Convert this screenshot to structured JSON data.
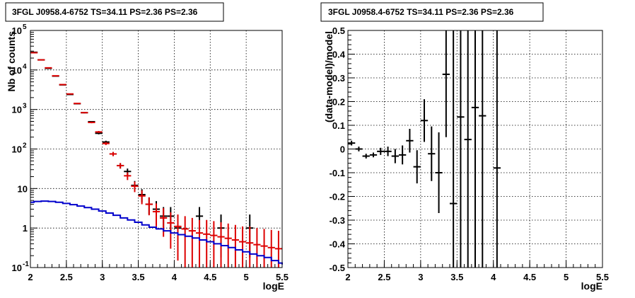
{
  "chart_data": [
    {
      "type": "scatter",
      "title": "3FGL J0958.4-6752 TS=34.11 PS=2.36 PS=2.36",
      "xlabel": "logE",
      "ylabel": "Nb of counts",
      "xlim": [
        2,
        5.5
      ],
      "ylim": [
        0.1,
        100000
      ],
      "yscale": "log",
      "grid": true,
      "x_ticks": [
        "2",
        "2.5",
        "3",
        "3.5",
        "4",
        "4.5",
        "5",
        "5.5"
      ],
      "y_ticks": [
        {
          "value": 0.1,
          "label": "10",
          "exp": "-1"
        },
        {
          "value": 1,
          "label": "1",
          "exp": ""
        },
        {
          "value": 10,
          "label": "10",
          "exp": ""
        },
        {
          "value": 100,
          "label": "10",
          "exp": "2"
        },
        {
          "value": 1000,
          "label": "10",
          "exp": "3"
        },
        {
          "value": 10000,
          "label": "10",
          "exp": "4"
        },
        {
          "value": 100000,
          "label": "10",
          "exp": "5"
        }
      ],
      "series": [
        {
          "kind": "data",
          "color": "#000000",
          "x": [
            2.05,
            2.15,
            2.25,
            2.35,
            2.45,
            2.55,
            2.65,
            2.75,
            2.85,
            2.95,
            3.05,
            3.15,
            3.25,
            3.35,
            3.45,
            3.55,
            3.65,
            3.75,
            3.85,
            3.95,
            4.05,
            4.35,
            4.65,
            5.05
          ],
          "y": [
            28000,
            18000,
            11000,
            7000,
            4200,
            2400,
            1400,
            830,
            490,
            250,
            150,
            75,
            38,
            27,
            12,
            7,
            4,
            3,
            2,
            2,
            1,
            2,
            1,
            1
          ],
          "ylo": [
            27800,
            17800,
            10850,
            6900,
            4130,
            2350,
            1360,
            800,
            470,
            235,
            138,
            66,
            32,
            22,
            8.8,
            4.5,
            2.2,
            1.5,
            0.8,
            0.8,
            0.18,
            0.8,
            0.18,
            0.18
          ],
          "yhi": [
            28200,
            18200,
            11150,
            7100,
            4270,
            2450,
            1440,
            860,
            510,
            265,
            162,
            84,
            44,
            32,
            15.5,
            9.6,
            5.9,
            4.8,
            3.4,
            3.4,
            2.2,
            3.4,
            2.2,
            2.2
          ],
          "xerr": 0.05
        },
        {
          "kind": "model",
          "color": "#dd0000",
          "x": [
            2.05,
            2.15,
            2.25,
            2.35,
            2.45,
            2.55,
            2.65,
            2.75,
            2.85,
            2.95,
            3.05,
            3.15,
            3.25,
            3.35,
            3.45,
            3.55,
            3.65,
            3.75,
            3.85,
            3.95,
            4.05,
            4.15,
            4.25,
            4.35,
            4.45,
            4.55,
            4.65,
            4.75,
            4.85,
            4.95,
            5.05,
            5.15,
            5.25,
            5.35,
            5.45
          ],
          "y": [
            27300,
            18000,
            11300,
            7100,
            4260,
            2470,
            1420,
            830,
            470,
            270,
            138,
            75,
            38,
            21,
            11.5,
            6.5,
            4.0,
            2.6,
            1.8,
            1.35,
            1.1,
            0.95,
            0.85,
            0.75,
            0.7,
            0.65,
            0.6,
            0.55,
            0.5,
            0.45,
            0.42,
            0.38,
            0.35,
            0.32,
            0.3
          ],
          "ylo": [
            27135,
            17865,
            11195,
            7015,
            4195,
            2420,
            1382,
            801,
            448,
            254,
            126,
            66,
            32,
            16.4,
            8.1,
            4.0,
            2.1,
            1.1,
            0.6,
            0.3,
            0.15,
            0.1,
            0.1,
            0.1,
            0.1,
            0.1,
            0.1,
            0.1,
            0.1,
            0.1,
            0.1,
            0.1,
            0.1,
            0.1,
            0.1
          ],
          "yhi": [
            27465,
            18135,
            11405,
            7185,
            4325,
            2520,
            1458,
            859,
            492,
            286,
            150,
            84,
            44,
            25.6,
            14.9,
            9.0,
            6.0,
            4.2,
            3.2,
            2.5,
            2.2,
            2.0,
            1.8,
            1.6,
            1.6,
            1.5,
            1.4,
            1.3,
            1.2,
            1.1,
            1.1,
            1.0,
            0.95,
            0.9,
            0.85
          ],
          "xerr": 0.05
        },
        {
          "kind": "step",
          "color": "#0000cc",
          "x": [
            2.0,
            2.05,
            2.15,
            2.25,
            2.35,
            2.45,
            2.55,
            2.65,
            2.75,
            2.85,
            2.95,
            3.05,
            3.15,
            3.25,
            3.35,
            3.45,
            3.55,
            3.65,
            3.75,
            3.85,
            3.95,
            4.05,
            4.15,
            4.25,
            4.35,
            4.45,
            4.55,
            4.65,
            4.75,
            4.85,
            4.95,
            5.05,
            5.15,
            5.25,
            5.35,
            5.45,
            5.5
          ],
          "y": [
            4.5,
            4.7,
            4.8,
            4.7,
            4.5,
            4.2,
            3.9,
            3.6,
            3.3,
            3.0,
            2.7,
            2.4,
            2.1,
            1.8,
            1.6,
            1.4,
            1.2,
            1.05,
            0.95,
            0.85,
            0.75,
            0.68,
            0.62,
            0.56,
            0.5,
            0.45,
            0.4,
            0.36,
            0.32,
            0.28,
            0.25,
            0.22,
            0.2,
            0.18,
            0.15,
            0.13,
            0.12
          ]
        }
      ]
    },
    {
      "type": "scatter",
      "title": "3FGL J0958.4-6752 TS=34.11 PS=2.36 PS=2.36",
      "xlabel": "logE",
      "ylabel": "(data-model)/model",
      "xlim": [
        2,
        5.5
      ],
      "ylim": [
        -0.5,
        0.5
      ],
      "grid": true,
      "x_ticks": [
        "2",
        "2.5",
        "3",
        "3.5",
        "4",
        "4.5",
        "5",
        "5.5"
      ],
      "y_ticks": [
        "-0.5",
        "-0.4",
        "-0.3",
        "-0.2",
        "-0.1",
        "0",
        "0.1",
        "0.2",
        "0.3",
        "0.4",
        "0.5"
      ],
      "series": [
        {
          "kind": "residual",
          "color": "#000000",
          "x": [
            2.05,
            2.15,
            2.25,
            2.35,
            2.45,
            2.55,
            2.65,
            2.75,
            2.85,
            2.95,
            3.05,
            3.15,
            3.25,
            3.35,
            3.45,
            3.55,
            3.65,
            3.75,
            3.85,
            4.05
          ],
          "y": [
            0.025,
            0.0,
            -0.03,
            -0.025,
            -0.01,
            -0.01,
            -0.03,
            -0.025,
            0.035,
            -0.075,
            0.12,
            -0.02,
            -0.1,
            0.315,
            -0.23,
            0.135,
            0.04,
            0.175,
            0.14,
            -0.08
          ],
          "ylo": [
            0.015,
            -0.01,
            -0.04,
            -0.035,
            -0.025,
            -0.03,
            -0.06,
            -0.065,
            -0.015,
            -0.145,
            0.03,
            -0.135,
            -0.27,
            0.05,
            -0.5,
            -0.5,
            -0.5,
            -0.5,
            -0.5,
            -0.5
          ],
          "yhi": [
            0.035,
            0.01,
            -0.02,
            -0.015,
            0.005,
            0.01,
            0.0,
            0.015,
            0.085,
            -0.005,
            0.21,
            0.095,
            0.07,
            0.5,
            0.5,
            0.5,
            0.5,
            0.5,
            0.5,
            0.5
          ],
          "xerr": 0.05
        }
      ]
    }
  ]
}
